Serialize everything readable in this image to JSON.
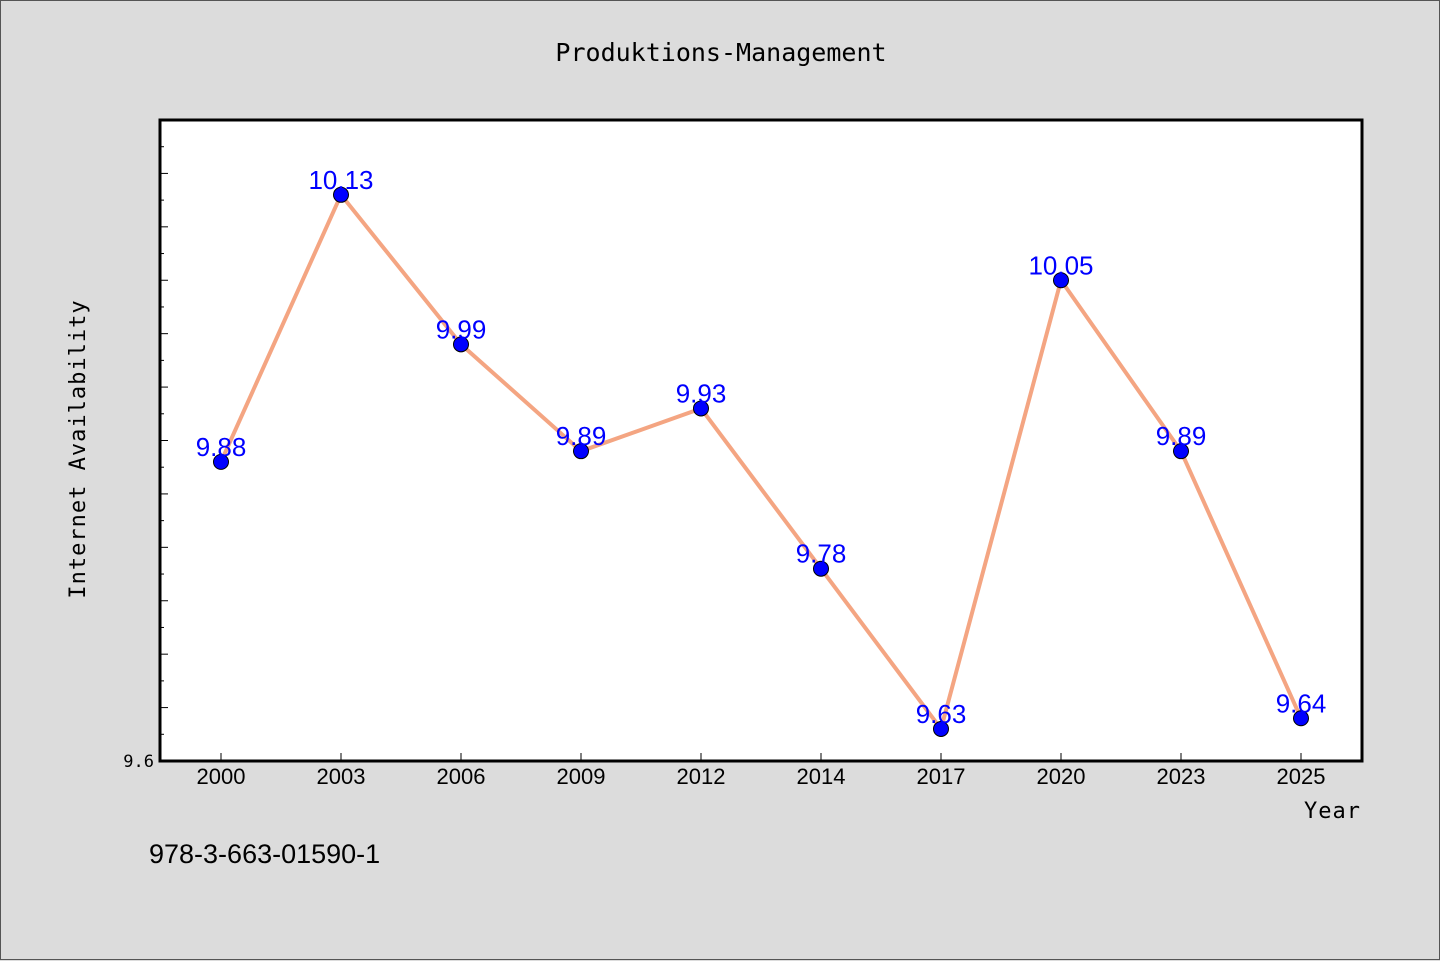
{
  "chart_data": {
    "type": "line",
    "title": "Produktions-Management",
    "xlabel": "Year",
    "ylabel": "Internet Availability",
    "categories": [
      "2000",
      "2003",
      "2006",
      "2009",
      "2012",
      "2014",
      "2017",
      "2020",
      "2023",
      "2025"
    ],
    "series": [
      {
        "values": [
          9.88,
          10.13,
          9.99,
          9.89,
          9.93,
          9.78,
          9.63,
          10.05,
          9.89,
          9.64
        ],
        "labels": [
          "9.88",
          "10.13",
          "9.99",
          "9.89",
          "9.93",
          "9.78",
          "9.63",
          "10.05",
          "9.89",
          "9.64"
        ],
        "line_color": "#f4a582",
        "marker_color": "#0000ff"
      }
    ],
    "ylim": [
      9.6,
      10.2
    ],
    "yticks_labeled": [
      "9.6"
    ],
    "grid": false,
    "legend": "none"
  },
  "footer": {
    "isbn": "978-3-663-01590-1"
  }
}
